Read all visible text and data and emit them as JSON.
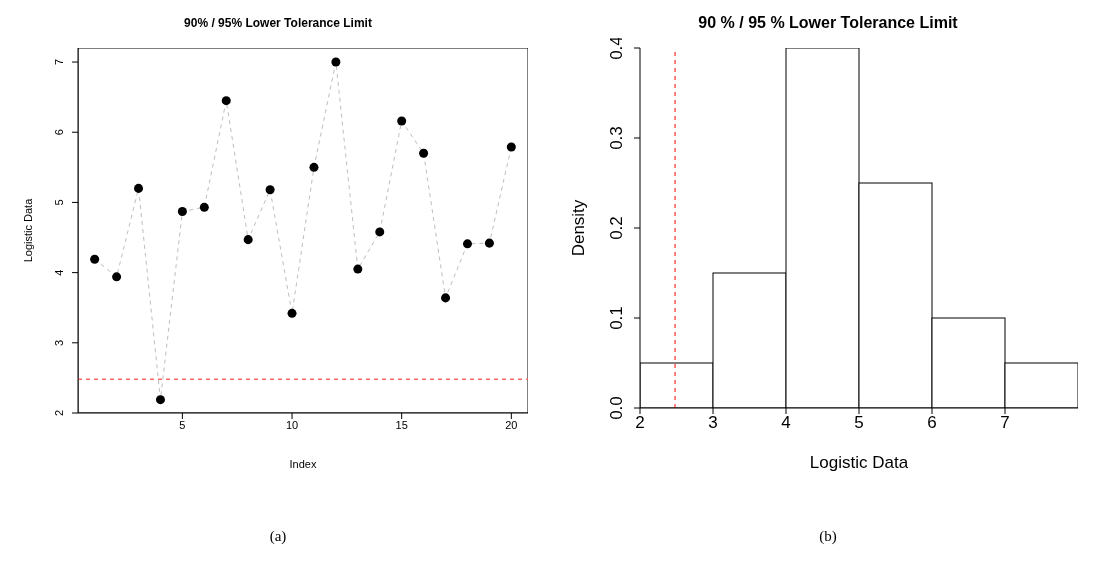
{
  "chart_data": [
    {
      "type": "line",
      "title": "90% / 95% Lower Tolerance Limit",
      "xlabel": "Index",
      "ylabel": "Logistic Data",
      "x": [
        1,
        2,
        3,
        4,
        5,
        6,
        7,
        8,
        9,
        10,
        11,
        12,
        13,
        14,
        15,
        16,
        17,
        18,
        19,
        20
      ],
      "series": [
        {
          "type": "line",
          "color": "#bebebe",
          "line_style": "dashed",
          "values": [
            4.19,
            3.94,
            5.2,
            2.19,
            4.87,
            4.93,
            6.45,
            4.47,
            5.18,
            3.42,
            5.5,
            7.0,
            4.05,
            4.58,
            6.16,
            5.7,
            3.64,
            4.41,
            4.42,
            5.79
          ]
        },
        {
          "type": "scatter",
          "color": "#000000",
          "marker": "circle",
          "values": [
            4.19,
            3.94,
            5.2,
            2.19,
            4.87,
            4.93,
            6.45,
            4.47,
            5.18,
            3.42,
            5.5,
            7.0,
            4.05,
            4.58,
            6.16,
            5.7,
            3.64,
            4.41,
            4.42,
            5.79
          ]
        }
      ],
      "xlim": [
        0.24,
        20.76
      ],
      "xticks": [
        5,
        10,
        15,
        20
      ],
      "ylim": [
        2,
        7.2
      ],
      "yticks": [
        2,
        3,
        4,
        5,
        6,
        7
      ],
      "ref_lines": [
        {
          "axis": "y",
          "value": 2.48,
          "color": "#ff6666",
          "line_style": "dashed"
        }
      ],
      "grid": false,
      "legend": false,
      "annotations": [
        "(a)"
      ]
    },
    {
      "type": "histogram",
      "title": "90 % / 95 % Lower Tolerance Limit",
      "xlabel": "Logistic Data",
      "ylabel": "Density",
      "bins": [
        2,
        3,
        4,
        5,
        6,
        7,
        8
      ],
      "values": [
        0.05,
        0.15,
        0.4,
        0.25,
        0.1,
        0.05
      ],
      "color": "#ffffff",
      "xlim": [
        2,
        8
      ],
      "xticks": [
        2,
        3,
        4,
        5,
        6,
        7
      ],
      "ylim": [
        0,
        0.4
      ],
      "yticks": [
        {
          "value": 0,
          "label": "0.0"
        },
        0.1,
        0.2,
        0.3,
        0.4
      ],
      "ref_lines": [
        {
          "axis": "x",
          "value": 2.48,
          "color": "#ff0000",
          "line_style": "dashed"
        }
      ],
      "grid": false,
      "legend": false,
      "annotations": [
        "(b)"
      ]
    }
  ]
}
